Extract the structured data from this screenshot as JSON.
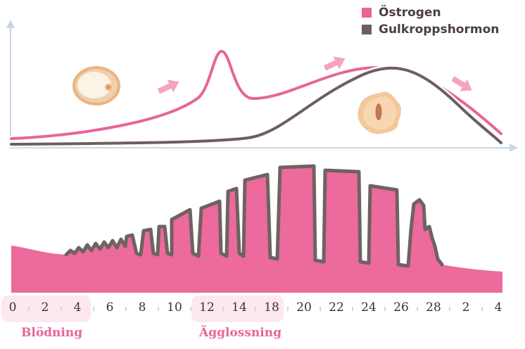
{
  "legend": [
    {
      "label": "Östrogen",
      "color": "#e8649a"
    },
    {
      "label": "Gulkroppshormon",
      "color": "#6e5e5e"
    }
  ],
  "colors": {
    "estrogen": "#e8649a",
    "progesterone": "#6e5e5e",
    "endometrium_fill": "#ec6a9c",
    "endometrium_outline": "#6e6262",
    "arrow": "#f4a3c0",
    "axis": "#c9d6e8",
    "phase_box": "#fde8ef"
  },
  "icons": {
    "egg": "egg-cell-icon",
    "corpus_luteum": "corpus-luteum-icon"
  },
  "days": [
    "0",
    "2",
    "4",
    "6",
    "8",
    "10",
    "12",
    "14",
    "18",
    "20",
    "22",
    "24",
    "26",
    "28",
    "2",
    "4"
  ],
  "phases": [
    {
      "label": "Blödning"
    },
    {
      "label": "Ägglossning"
    }
  ]
}
